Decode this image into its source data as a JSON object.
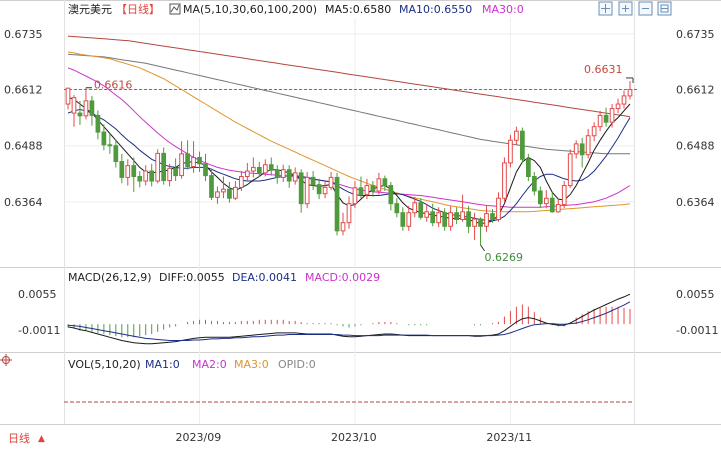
{
  "header": {
    "symbol": "澳元美元",
    "period": "【日线】",
    "ma_label": "MA(5,10,30,60,100,200)",
    "ma5": "MA5:0.6580",
    "ma10": "MA10:0.6550",
    "ma30": "MA30:0"
  },
  "macd_header": {
    "label": "MACD(26,12,9)",
    "diff": "DIFF:0.0055",
    "dea": "DEA:0.0041",
    "macd": "MACD:0.0029"
  },
  "vol_header": {
    "label": "VOL(5,10,20)",
    "ma1": "MA1:0",
    "ma2": "MA2:0",
    "ma3": "MA3:0",
    "opid": "OPID:0"
  },
  "bottom": {
    "period_label": "日线",
    "period_arrow": "▲"
  },
  "colors": {
    "up": "#e44b4b",
    "down": "#4f9a3c",
    "ma5": "#1a1a1a",
    "ma10": "#1c2f86",
    "ma30": "#cc33cc",
    "ma60": "#e0952a",
    "ma100": "#777777",
    "ma200": "#b3473d"
  },
  "icons": [
    "crosshair-icon",
    "zoom-in-icon",
    "zoom-out-icon",
    "settings-icon"
  ],
  "chart_data": {
    "type": "candlestick",
    "price_ticks": [
      "0.6735",
      "0.6612",
      "0.6488",
      "0.6364"
    ],
    "price_tick_values": [
      0.6735,
      0.6612,
      0.6488,
      0.6364
    ],
    "ylim": [
      0.624,
      0.677
    ],
    "x_labels": [
      "2023/09",
      "2023/10",
      "2023/11"
    ],
    "x_label_index": [
      22,
      48,
      74
    ],
    "current_price_label": "0.6612",
    "current_price": 0.6612,
    "high_label": "0.6631",
    "high_value": 0.6631,
    "high_index": 94,
    "left_mark_label": "0.6616",
    "left_mark_value": 0.6616,
    "left_mark_index": 3,
    "low_label": "0.6269",
    "low_value": 0.6269,
    "low_index": 69,
    "candles": [
      [
        0.658,
        0.6615,
        0.661,
        0.6568
      ],
      [
        0.656,
        0.6594,
        0.66,
        0.653
      ],
      [
        0.656,
        0.6554,
        0.6587,
        0.6534
      ],
      [
        0.6554,
        0.6587,
        0.6616,
        0.6546
      ],
      [
        0.6587,
        0.6555,
        0.6598,
        0.6532
      ],
      [
        0.6555,
        0.6518,
        0.6566,
        0.6502
      ],
      [
        0.6518,
        0.649,
        0.6535,
        0.6478
      ],
      [
        0.649,
        0.6488,
        0.6515,
        0.647
      ],
      [
        0.6488,
        0.6453,
        0.6502,
        0.644
      ],
      [
        0.6453,
        0.6418,
        0.647,
        0.6405
      ],
      [
        0.6418,
        0.6444,
        0.6458,
        0.64
      ],
      [
        0.6444,
        0.642,
        0.6462,
        0.6386
      ],
      [
        0.642,
        0.641,
        0.6432,
        0.6396
      ],
      [
        0.641,
        0.6432,
        0.6445,
        0.64
      ],
      [
        0.6432,
        0.641,
        0.6448,
        0.6398
      ],
      [
        0.641,
        0.6471,
        0.648,
        0.6405
      ],
      [
        0.6471,
        0.6411,
        0.6484,
        0.6402
      ],
      [
        0.6411,
        0.6438,
        0.6448,
        0.6398
      ],
      [
        0.6438,
        0.6422,
        0.646,
        0.641
      ],
      [
        0.6422,
        0.647,
        0.6498,
        0.6415
      ],
      [
        0.647,
        0.6442,
        0.65,
        0.6435
      ],
      [
        0.6442,
        0.6462,
        0.6498,
        0.6428
      ],
      [
        0.6462,
        0.6448,
        0.6475,
        0.643
      ],
      [
        0.6448,
        0.6422,
        0.647,
        0.641
      ],
      [
        0.6422,
        0.6374,
        0.6438,
        0.6368
      ],
      [
        0.6374,
        0.6386,
        0.6398,
        0.636
      ],
      [
        0.6386,
        0.6392,
        0.642,
        0.6372
      ],
      [
        0.6392,
        0.6372,
        0.6408,
        0.6362
      ],
      [
        0.6372,
        0.6396,
        0.641,
        0.6368
      ],
      [
        0.6396,
        0.642,
        0.6432,
        0.6388
      ],
      [
        0.642,
        0.6432,
        0.645,
        0.6412
      ],
      [
        0.6432,
        0.644,
        0.6462,
        0.6418
      ],
      [
        0.644,
        0.6428,
        0.6452,
        0.642
      ],
      [
        0.6428,
        0.6446,
        0.6458,
        0.642
      ],
      [
        0.6446,
        0.6434,
        0.6462,
        0.6422
      ],
      [
        0.6434,
        0.6418,
        0.6445,
        0.6404
      ],
      [
        0.6418,
        0.6435,
        0.6446,
        0.6408
      ],
      [
        0.6435,
        0.641,
        0.6445,
        0.6395
      ],
      [
        0.641,
        0.6428,
        0.644,
        0.6402
      ],
      [
        0.6428,
        0.636,
        0.6436,
        0.634
      ],
      [
        0.636,
        0.6418,
        0.643,
        0.635
      ],
      [
        0.6418,
        0.6402,
        0.6432,
        0.639
      ],
      [
        0.6402,
        0.6382,
        0.6415,
        0.637
      ],
      [
        0.6382,
        0.6396,
        0.641,
        0.6372
      ],
      [
        0.6396,
        0.6418,
        0.643,
        0.639
      ],
      [
        0.6418,
        0.63,
        0.6428,
        0.629
      ],
      [
        0.63,
        0.6318,
        0.634,
        0.629
      ],
      [
        0.6318,
        0.636,
        0.6376,
        0.6305
      ],
      [
        0.636,
        0.6395,
        0.641,
        0.635
      ],
      [
        0.6395,
        0.638,
        0.642,
        0.6372
      ],
      [
        0.638,
        0.64,
        0.6415,
        0.637
      ],
      [
        0.64,
        0.6388,
        0.641,
        0.6375
      ],
      [
        0.6388,
        0.6415,
        0.6428,
        0.638
      ],
      [
        0.6415,
        0.64,
        0.6422,
        0.6388
      ],
      [
        0.64,
        0.636,
        0.6408,
        0.6345
      ],
      [
        0.636,
        0.634,
        0.6372,
        0.633
      ],
      [
        0.634,
        0.631,
        0.6352,
        0.63
      ],
      [
        0.631,
        0.634,
        0.6355,
        0.63
      ],
      [
        0.634,
        0.6362,
        0.6375,
        0.633
      ],
      [
        0.6362,
        0.633,
        0.6372,
        0.6325
      ],
      [
        0.633,
        0.6342,
        0.6358,
        0.632
      ],
      [
        0.6342,
        0.6318,
        0.636,
        0.631
      ],
      [
        0.6318,
        0.634,
        0.6352,
        0.6308
      ],
      [
        0.634,
        0.631,
        0.635,
        0.63
      ],
      [
        0.631,
        0.634,
        0.6355,
        0.63
      ],
      [
        0.634,
        0.6325,
        0.6352,
        0.6315
      ],
      [
        0.6325,
        0.6342,
        0.638,
        0.632
      ],
      [
        0.6342,
        0.631,
        0.6355,
        0.6295
      ],
      [
        0.631,
        0.6326,
        0.634,
        0.628
      ],
      [
        0.6326,
        0.631,
        0.633,
        0.6269
      ],
      [
        0.631,
        0.6338,
        0.6355,
        0.6298
      ],
      [
        0.6338,
        0.6325,
        0.6348,
        0.6318
      ],
      [
        0.6325,
        0.6372,
        0.6385,
        0.632
      ],
      [
        0.6372,
        0.645,
        0.6462,
        0.6365
      ],
      [
        0.645,
        0.65,
        0.6512,
        0.644
      ],
      [
        0.65,
        0.652,
        0.653,
        0.649
      ],
      [
        0.652,
        0.6458,
        0.6528,
        0.645
      ],
      [
        0.6458,
        0.642,
        0.647,
        0.641
      ],
      [
        0.642,
        0.6388,
        0.643,
        0.6378
      ],
      [
        0.6388,
        0.636,
        0.6398,
        0.635
      ],
      [
        0.636,
        0.6372,
        0.639,
        0.635
      ],
      [
        0.6372,
        0.6342,
        0.6385,
        0.634
      ],
      [
        0.6342,
        0.6358,
        0.6372,
        0.634
      ],
      [
        0.6358,
        0.64,
        0.641,
        0.635
      ],
      [
        0.64,
        0.647,
        0.648,
        0.6395
      ],
      [
        0.647,
        0.6492,
        0.65,
        0.646
      ],
      [
        0.6492,
        0.6468,
        0.6505,
        0.644
      ],
      [
        0.6468,
        0.651,
        0.6525,
        0.646
      ],
      [
        0.651,
        0.653,
        0.654,
        0.6498
      ],
      [
        0.653,
        0.6555,
        0.6565,
        0.652
      ],
      [
        0.6555,
        0.654,
        0.6572,
        0.653
      ],
      [
        0.654,
        0.657,
        0.658,
        0.6528
      ],
      [
        0.657,
        0.658,
        0.6592,
        0.656
      ],
      [
        0.658,
        0.6598,
        0.661,
        0.657
      ],
      [
        0.6598,
        0.6612,
        0.6631,
        0.659
      ]
    ],
    "ma5": [
      0.6595,
      0.659,
      0.658,
      0.657,
      0.656,
      0.6545,
      0.653,
      0.6515,
      0.65,
      0.6485,
      0.647,
      0.6455,
      0.644,
      0.643,
      0.6428,
      0.643,
      0.6432,
      0.6435,
      0.644,
      0.6448,
      0.6452,
      0.6452,
      0.645,
      0.6445,
      0.643,
      0.6418,
      0.6405,
      0.6395,
      0.639,
      0.6395,
      0.6402,
      0.6412,
      0.642,
      0.643,
      0.6435,
      0.6435,
      0.6432,
      0.6428,
      0.6422,
      0.6412,
      0.6402,
      0.64,
      0.6398,
      0.64,
      0.6402,
      0.638,
      0.6362,
      0.6355,
      0.6358,
      0.637,
      0.6382,
      0.6392,
      0.6398,
      0.64,
      0.6392,
      0.6378,
      0.6362,
      0.635,
      0.6345,
      0.634,
      0.6338,
      0.6335,
      0.6332,
      0.633,
      0.6328,
      0.6327,
      0.6327,
      0.6325,
      0.632,
      0.6316,
      0.6318,
      0.6322,
      0.6335,
      0.636,
      0.6395,
      0.643,
      0.6452,
      0.6462,
      0.6455,
      0.644,
      0.641,
      0.6385,
      0.637,
      0.6368,
      0.638,
      0.64,
      0.6425,
      0.645,
      0.6478,
      0.65,
      0.652,
      0.6538,
      0.655,
      0.6565,
      0.658
    ],
    "ma10": [
      0.656,
      0.6565,
      0.6568,
      0.6565,
      0.656,
      0.6552,
      0.6545,
      0.6535,
      0.6525,
      0.6512,
      0.65,
      0.649,
      0.6478,
      0.6468,
      0.6458,
      0.6452,
      0.6446,
      0.6442,
      0.644,
      0.6438,
      0.6438,
      0.644,
      0.644,
      0.644,
      0.6436,
      0.643,
      0.6425,
      0.642,
      0.6415,
      0.6412,
      0.641,
      0.641,
      0.641,
      0.6412,
      0.6415,
      0.6418,
      0.642,
      0.6422,
      0.6422,
      0.642,
      0.6418,
      0.6415,
      0.6412,
      0.641,
      0.6408,
      0.64,
      0.6392,
      0.6385,
      0.638,
      0.6378,
      0.6378,
      0.6378,
      0.6378,
      0.638,
      0.6382,
      0.6382,
      0.638,
      0.6375,
      0.637,
      0.6365,
      0.6358,
      0.635,
      0.6345,
      0.634,
      0.6336,
      0.6334,
      0.6332,
      0.633,
      0.6328,
      0.6325,
      0.6323,
      0.6322,
      0.6325,
      0.6332,
      0.6345,
      0.636,
      0.6378,
      0.6395,
      0.641,
      0.642,
      0.6425,
      0.6425,
      0.642,
      0.6415,
      0.6412,
      0.641,
      0.6412,
      0.642,
      0.6432,
      0.6448,
      0.6465,
      0.6485,
      0.6505,
      0.6528,
      0.655
    ],
    "ma30": [
      0.666,
      0.6655,
      0.6648,
      0.6642,
      0.6635,
      0.6628,
      0.662,
      0.661,
      0.66,
      0.659,
      0.6578,
      0.6565,
      0.6552,
      0.654,
      0.6528,
      0.6516,
      0.6505,
      0.6495,
      0.6486,
      0.6478,
      0.647,
      0.6462,
      0.6456,
      0.645,
      0.6445,
      0.644,
      0.6437,
      0.6434,
      0.6432,
      0.643,
      0.6428,
      0.6427,
      0.6426,
      0.6425,
      0.6424,
      0.6423,
      0.6422,
      0.6421,
      0.642,
      0.6418,
      0.6416,
      0.6414,
      0.6412,
      0.641,
      0.6408,
      0.6404,
      0.64,
      0.6396,
      0.6393,
      0.639,
      0.6388,
      0.6386,
      0.6385,
      0.6384,
      0.6383,
      0.6382,
      0.6381,
      0.638,
      0.6379,
      0.6378,
      0.6376,
      0.6374,
      0.6372,
      0.637,
      0.6368,
      0.6366,
      0.6364,
      0.6362,
      0.636,
      0.6358,
      0.6356,
      0.6355,
      0.6354,
      0.6353,
      0.6352,
      0.6352,
      0.6352,
      0.6352,
      0.6352,
      0.6352,
      0.6353,
      0.6354,
      0.6355,
      0.6356,
      0.6357,
      0.6358,
      0.636,
      0.6362,
      0.6364,
      0.6368,
      0.6372,
      0.6378,
      0.6384,
      0.6392,
      0.64
    ],
    "ma60": [
      0.6695,
      0.6693,
      0.669,
      0.6688,
      0.6686,
      0.6684,
      0.6682,
      0.668,
      0.6676,
      0.6672,
      0.6668,
      0.6664,
      0.666,
      0.6654,
      0.6648,
      0.6642,
      0.6636,
      0.6628,
      0.662,
      0.6612,
      0.6604,
      0.6596,
      0.6588,
      0.658,
      0.6572,
      0.6564,
      0.6556,
      0.6548,
      0.654,
      0.6533,
      0.6526,
      0.6519,
      0.6512,
      0.6505,
      0.6498,
      0.6492,
      0.6486,
      0.648,
      0.6474,
      0.6468,
      0.6462,
      0.6456,
      0.645,
      0.6444,
      0.6438,
      0.6432,
      0.6426,
      0.642,
      0.6415,
      0.641,
      0.6405,
      0.64,
      0.6396,
      0.6392,
      0.6388,
      0.6384,
      0.638,
      0.6376,
      0.6373,
      0.637,
      0.6367,
      0.6364,
      0.6361,
      0.6358,
      0.6355,
      0.6353,
      0.6351,
      0.6349,
      0.6347,
      0.6345,
      0.6344,
      0.6343,
      0.6342,
      0.6342,
      0.6342,
      0.6342,
      0.6342,
      0.6342,
      0.6343,
      0.6344,
      0.6345,
      0.6346,
      0.6347,
      0.6348,
      0.6349,
      0.635,
      0.6351,
      0.6352,
      0.6353,
      0.6354,
      0.6355,
      0.6356,
      0.6357,
      0.6358,
      0.636
    ],
    "ma100": [
      0.669,
      0.6689,
      0.6688,
      0.6687,
      0.6686,
      0.6685,
      0.6684,
      0.6682,
      0.668,
      0.6678,
      0.6676,
      0.6674,
      0.6672,
      0.667,
      0.6667,
      0.6664,
      0.6661,
      0.6658,
      0.6655,
      0.6652,
      0.6649,
      0.6646,
      0.6643,
      0.664,
      0.6637,
      0.6634,
      0.6631,
      0.6628,
      0.6625,
      0.6622,
      0.6619,
      0.6616,
      0.6613,
      0.661,
      0.6607,
      0.6604,
      0.6601,
      0.6598,
      0.6595,
      0.6592,
      0.6589,
      0.6586,
      0.6583,
      0.658,
      0.6577,
      0.6574,
      0.6571,
      0.6568,
      0.6565,
      0.6562,
      0.6559,
      0.6556,
      0.6553,
      0.655,
      0.6547,
      0.6544,
      0.6541,
      0.6538,
      0.6535,
      0.6532,
      0.6529,
      0.6526,
      0.6523,
      0.652,
      0.6517,
      0.6514,
      0.6511,
      0.6508,
      0.6505,
      0.6502,
      0.65,
      0.6498,
      0.6496,
      0.6494,
      0.6492,
      0.649,
      0.6488,
      0.6486,
      0.6484,
      0.6482,
      0.648,
      0.6479,
      0.6478,
      0.6477,
      0.6476,
      0.6475,
      0.6474,
      0.6473,
      0.6472,
      0.6471,
      0.647,
      0.647,
      0.647,
      0.647,
      0.647
    ],
    "ma200": [
      0.673,
      0.6729,
      0.6728,
      0.6727,
      0.6726,
      0.6725,
      0.6724,
      0.6723,
      0.6722,
      0.6721,
      0.672,
      0.6718,
      0.6716,
      0.6714,
      0.6712,
      0.671,
      0.6708,
      0.6706,
      0.6704,
      0.6702,
      0.67,
      0.6698,
      0.6696,
      0.6694,
      0.6692,
      0.669,
      0.6688,
      0.6686,
      0.6684,
      0.6682,
      0.668,
      0.6678,
      0.6676,
      0.6674,
      0.6672,
      0.667,
      0.6668,
      0.6666,
      0.6664,
      0.6662,
      0.666,
      0.6658,
      0.6656,
      0.6654,
      0.6652,
      0.665,
      0.6648,
      0.6646,
      0.6644,
      0.6642,
      0.664,
      0.6638,
      0.6636,
      0.6634,
      0.6632,
      0.663,
      0.6628,
      0.6626,
      0.6624,
      0.6622,
      0.662,
      0.6618,
      0.6616,
      0.6614,
      0.6612,
      0.661,
      0.6608,
      0.6606,
      0.6604,
      0.6602,
      0.66,
      0.6598,
      0.6596,
      0.6594,
      0.6592,
      0.659,
      0.6588,
      0.6586,
      0.6584,
      0.6582,
      0.658,
      0.6578,
      0.6576,
      0.6574,
      0.6572,
      0.657,
      0.6568,
      0.6566,
      0.6564,
      0.6562,
      0.656,
      0.6558,
      0.6556,
      0.6554,
      0.6552
    ],
    "macd_ticks": [
      "0.0055",
      "-0.0011"
    ],
    "macd_tick_values": [
      0.0055,
      -0.0011
    ],
    "macd_ylim": [
      -0.004,
      0.007
    ],
    "diff": [
      -0.0005,
      -0.0007,
      -0.001,
      -0.0012,
      -0.0015,
      -0.0018,
      -0.0021,
      -0.0024,
      -0.0027,
      -0.003,
      -0.0032,
      -0.0034,
      -0.0035,
      -0.0036,
      -0.0036,
      -0.0035,
      -0.0034,
      -0.0033,
      -0.0032,
      -0.003,
      -0.0028,
      -0.0026,
      -0.0025,
      -0.0024,
      -0.0024,
      -0.0024,
      -0.0024,
      -0.0024,
      -0.0023,
      -0.0022,
      -0.0021,
      -0.002,
      -0.0019,
      -0.0018,
      -0.0017,
      -0.0016,
      -0.0016,
      -0.0016,
      -0.0016,
      -0.0017,
      -0.0018,
      -0.0018,
      -0.0018,
      -0.0018,
      -0.0018,
      -0.002,
      -0.0022,
      -0.0023,
      -0.0023,
      -0.0022,
      -0.0021,
      -0.002,
      -0.0019,
      -0.0018,
      -0.0018,
      -0.0019,
      -0.002,
      -0.0021,
      -0.0021,
      -0.0021,
      -0.0021,
      -0.0021,
      -0.0021,
      -0.0021,
      -0.0021,
      -0.0021,
      -0.0021,
      -0.0021,
      -0.0022,
      -0.0022,
      -0.0021,
      -0.002,
      -0.0018,
      -0.0012,
      -0.0004,
      0.0004,
      0.001,
      0.0012,
      0.001,
      0.0006,
      0.0002,
      0.0,
      -0.0002,
      -0.0002,
      0.0002,
      0.0008,
      0.0014,
      0.002,
      0.0026,
      0.0031,
      0.0036,
      0.0041,
      0.0046,
      0.005,
      0.0055
    ],
    "dea": [
      -0.0002,
      -0.0003,
      -0.0004,
      -0.0006,
      -0.0008,
      -0.001,
      -0.0012,
      -0.0014,
      -0.0016,
      -0.0018,
      -0.002,
      -0.0022,
      -0.0024,
      -0.0026,
      -0.0027,
      -0.0028,
      -0.0029,
      -0.003,
      -0.003,
      -0.003,
      -0.003,
      -0.0029,
      -0.0029,
      -0.0028,
      -0.0027,
      -0.0027,
      -0.0026,
      -0.0026,
      -0.0025,
      -0.0025,
      -0.0024,
      -0.0023,
      -0.0023,
      -0.0022,
      -0.0021,
      -0.002,
      -0.002,
      -0.0019,
      -0.0019,
      -0.0019,
      -0.0019,
      -0.0019,
      -0.0019,
      -0.0019,
      -0.0019,
      -0.0019,
      -0.002,
      -0.002,
      -0.0021,
      -0.0021,
      -0.0021,
      -0.0021,
      -0.0021,
      -0.002,
      -0.002,
      -0.002,
      -0.002,
      -0.002,
      -0.002,
      -0.002,
      -0.002,
      -0.0021,
      -0.0021,
      -0.0021,
      -0.0021,
      -0.0021,
      -0.0021,
      -0.0021,
      -0.0021,
      -0.0021,
      -0.0021,
      -0.0021,
      -0.002,
      -0.0019,
      -0.0016,
      -0.0012,
      -0.0008,
      -0.0004,
      -0.0001,
      0.0,
      0.0001,
      0.0001,
      0.0,
      0.0,
      0.0001,
      0.0002,
      0.0005,
      0.0008,
      0.0012,
      0.0016,
      0.002,
      0.0025,
      0.003,
      0.0035,
      0.0041
    ]
  }
}
